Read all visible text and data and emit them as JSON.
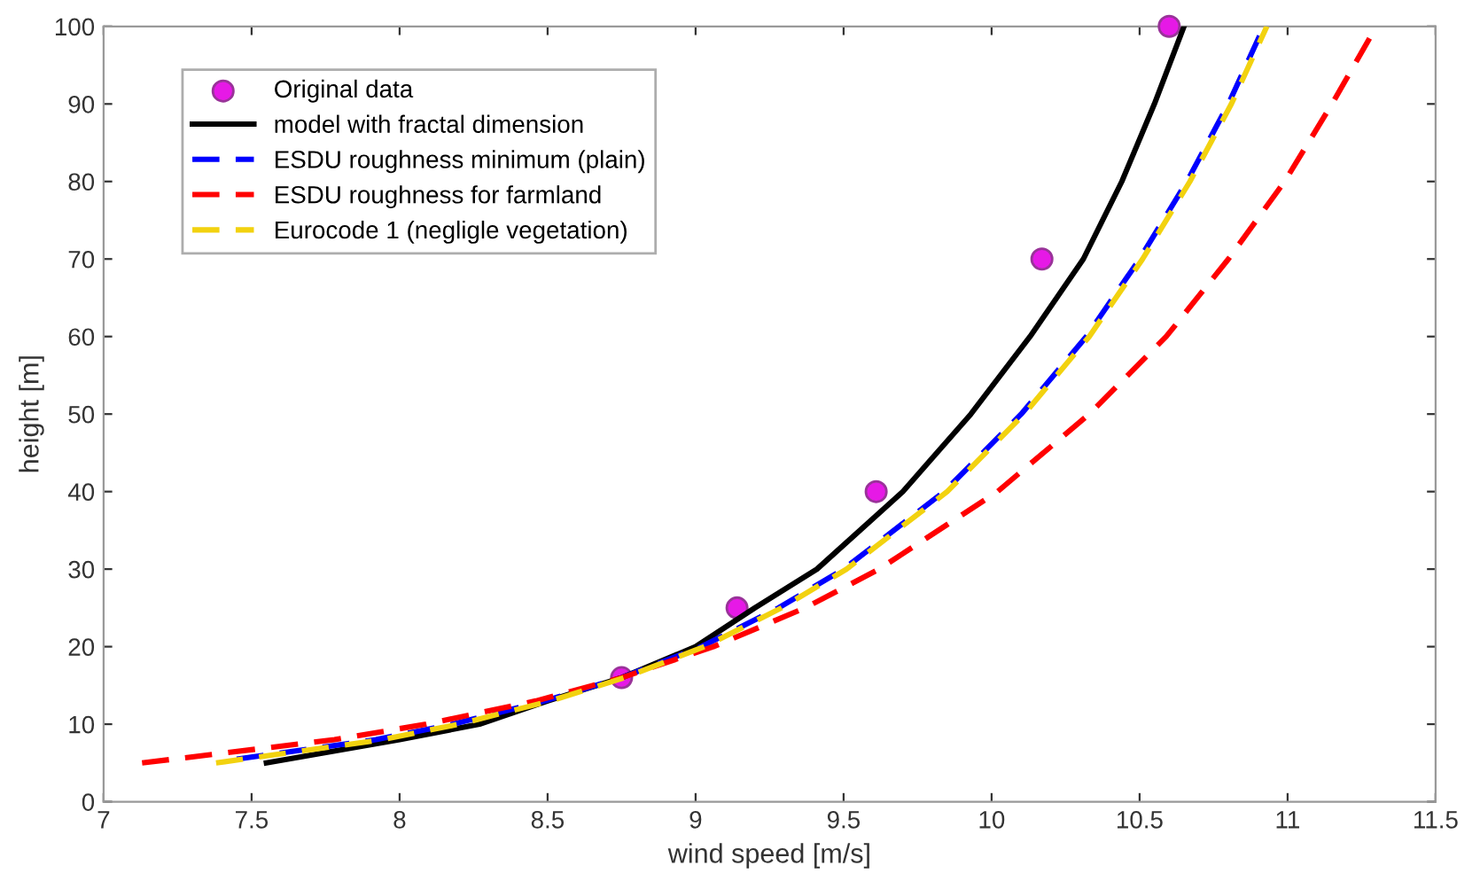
{
  "chart_data": {
    "type": "line",
    "xlabel": "wind speed [m/s]",
    "ylabel": "height [m]",
    "xlim": [
      7,
      11.5
    ],
    "ylim": [
      0,
      100
    ],
    "xticks": [
      7,
      7.5,
      8,
      8.5,
      9,
      9.5,
      10,
      10.5,
      11,
      11.5
    ],
    "yticks": [
      0,
      10,
      20,
      30,
      40,
      50,
      60,
      70,
      80,
      90,
      100
    ],
    "grid": false,
    "legend": "top left",
    "series": [
      {
        "name": "Original data",
        "type": "scatter",
        "marker": "circle",
        "color": "#e619e6",
        "x": [
          8.75,
          9.14,
          9.61,
          10.17,
          10.6
        ],
        "values": [
          16,
          25,
          40,
          70,
          100
        ]
      },
      {
        "name": "model with fractal dimension",
        "color": "#000000",
        "line_style": "solid",
        "x": [
          7.55,
          8.0,
          8.27,
          8.5,
          8.75,
          9.0,
          9.2,
          9.41,
          9.7,
          9.93,
          10.13,
          10.31,
          10.44,
          10.55,
          10.65
        ],
        "values": [
          5,
          8,
          10,
          13,
          16,
          20,
          25,
          30,
          40,
          50,
          60,
          70,
          80,
          90,
          100
        ]
      },
      {
        "name": "ESDU roughness minimum (plain)",
        "color": "#0000ff",
        "line_style": "dashed",
        "x": [
          7.45,
          7.92,
          8.18,
          8.49,
          8.75,
          9.02,
          9.28,
          9.5,
          9.84,
          10.1,
          10.32,
          10.5,
          10.66,
          10.8,
          10.92
        ],
        "values": [
          5.5,
          8,
          10,
          13,
          16,
          20,
          25,
          30,
          40,
          50,
          60,
          70,
          80,
          90,
          100
        ]
      },
      {
        "name": "ESDU roughness for farmland",
        "color": "#ff0000",
        "line_style": "dashed",
        "x": [
          7.13,
          7.78,
          8.09,
          8.46,
          8.75,
          9.06,
          9.37,
          9.62,
          10.02,
          10.33,
          10.59,
          10.8,
          10.99,
          11.15,
          11.3
        ],
        "values": [
          5,
          8,
          10,
          13,
          16,
          20,
          25,
          30,
          40,
          50,
          60,
          70,
          80,
          90,
          100
        ]
      },
      {
        "name": "Eurocode 1 (negligle vegetation)",
        "color": "#f2d20f",
        "line_style": "dashed",
        "x": [
          7.38,
          7.94,
          8.2,
          8.51,
          8.76,
          9.03,
          9.29,
          9.51,
          9.85,
          10.11,
          10.33,
          10.51,
          10.67,
          10.81,
          10.93
        ],
        "values": [
          5,
          8,
          10,
          13,
          16,
          20,
          25,
          30,
          40,
          50,
          60,
          70,
          80,
          90,
          100
        ]
      }
    ]
  }
}
